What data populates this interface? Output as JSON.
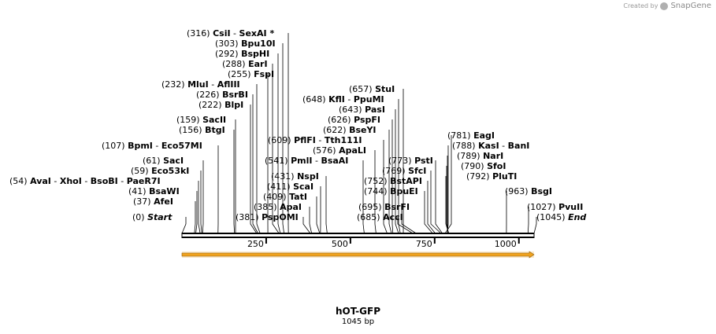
{
  "watermark": {
    "prefix": "Created by",
    "brand": "SnapGene",
    "icon": "snapgene-logo-icon"
  },
  "sequence": {
    "name": "hOT-GFP",
    "length_label": "1045 bp",
    "length": 1045
  },
  "axis": {
    "ticks": [
      250,
      500,
      750,
      1000
    ]
  },
  "feature": {
    "start": 1,
    "end": 1045,
    "color": "#f0a21e",
    "direction": "forward"
  },
  "labels": [
    {
      "pos": "(316)",
      "names": [
        {
          "n": "CsiI",
          "sep": ""
        },
        {
          "n": "SexAI *",
          "sep": "-"
        }
      ],
      "site": 316
    },
    {
      "pos": "(303)",
      "names": [
        {
          "n": "Bpu10I",
          "sep": ""
        }
      ],
      "site": 303
    },
    {
      "pos": "(292)",
      "names": [
        {
          "n": "BspHI",
          "sep": ""
        }
      ],
      "site": 292
    },
    {
      "pos": "(288)",
      "names": [
        {
          "n": "EarI",
          "sep": ""
        }
      ],
      "site": 288
    },
    {
      "pos": "(255)",
      "names": [
        {
          "n": "FspI",
          "sep": ""
        }
      ],
      "site": 255
    },
    {
      "pos": "(232)",
      "names": [
        {
          "n": "MluI",
          "sep": ""
        },
        {
          "n": "AflIII",
          "sep": "-"
        }
      ],
      "site": 232
    },
    {
      "pos": "(226)",
      "names": [
        {
          "n": "BsrBI",
          "sep": ""
        }
      ],
      "site": 226
    },
    {
      "pos": "(222)",
      "names": [
        {
          "n": "BlpI",
          "sep": ""
        }
      ],
      "site": 222
    },
    {
      "pos": "(159)",
      "names": [
        {
          "n": "SacII",
          "sep": ""
        }
      ],
      "site": 159
    },
    {
      "pos": "(156)",
      "names": [
        {
          "n": "BtgI",
          "sep": ""
        }
      ],
      "site": 156
    },
    {
      "pos": "(107)",
      "names": [
        {
          "n": "BpmI",
          "sep": ""
        },
        {
          "n": "Eco57MI",
          "sep": "-"
        }
      ],
      "site": 107
    },
    {
      "pos": "(61)",
      "names": [
        {
          "n": "SacI",
          "sep": ""
        }
      ],
      "site": 61
    },
    {
      "pos": "(59)",
      "names": [
        {
          "n": "Eco53kI",
          "sep": ""
        }
      ],
      "site": 59
    },
    {
      "pos": "(54)",
      "names": [
        {
          "n": "AvaI",
          "sep": ""
        },
        {
          "n": "XhoI",
          "sep": "-"
        },
        {
          "n": "BsoBI",
          "sep": "-"
        },
        {
          "n": "PaeR7I",
          "sep": "-"
        }
      ],
      "site": 54
    },
    {
      "pos": "(41)",
      "names": [
        {
          "n": "BsaWI",
          "sep": ""
        }
      ],
      "site": 41
    },
    {
      "pos": "(37)",
      "names": [
        {
          "n": "AfeI",
          "sep": ""
        }
      ],
      "site": 37
    },
    {
      "pos": "(0)",
      "names": [
        {
          "n": "Start",
          "sep": "",
          "italic": true
        }
      ],
      "site": 0
    },
    {
      "pos": "(657)",
      "names": [
        {
          "n": "StuI",
          "sep": ""
        }
      ],
      "site": 657
    },
    {
      "pos": "(648)",
      "names": [
        {
          "n": "KflI",
          "sep": ""
        },
        {
          "n": "PpuMI",
          "sep": "-"
        }
      ],
      "site": 648
    },
    {
      "pos": "(643)",
      "names": [
        {
          "n": "PasI",
          "sep": ""
        }
      ],
      "site": 643
    },
    {
      "pos": "(626)",
      "names": [
        {
          "n": "PspFI",
          "sep": ""
        }
      ],
      "site": 626
    },
    {
      "pos": "(622)",
      "names": [
        {
          "n": "BseYI",
          "sep": ""
        }
      ],
      "site": 622
    },
    {
      "pos": "(609)",
      "names": [
        {
          "n": "PflFI",
          "sep": ""
        },
        {
          "n": "Tth111I",
          "sep": "-"
        }
      ],
      "site": 609
    },
    {
      "pos": "(576)",
      "names": [
        {
          "n": "ApaLI",
          "sep": ""
        }
      ],
      "site": 576
    },
    {
      "pos": "(541)",
      "names": [
        {
          "n": "PmlI",
          "sep": ""
        },
        {
          "n": "BsaAI",
          "sep": "-"
        }
      ],
      "site": 541
    },
    {
      "pos": "(431)",
      "names": [
        {
          "n": "NspI",
          "sep": ""
        }
      ],
      "site": 431
    },
    {
      "pos": "(411)",
      "names": [
        {
          "n": "ScaI",
          "sep": ""
        }
      ],
      "site": 411
    },
    {
      "pos": "(409)",
      "names": [
        {
          "n": "TatI",
          "sep": ""
        }
      ],
      "site": 409
    },
    {
      "pos": "(385)",
      "names": [
        {
          "n": "ApaI",
          "sep": ""
        }
      ],
      "site": 385
    },
    {
      "pos": "(381)",
      "names": [
        {
          "n": "PspOMI",
          "sep": ""
        }
      ],
      "site": 381
    },
    {
      "pos": "(773)",
      "names": [
        {
          "n": "PstI",
          "sep": ""
        }
      ],
      "site": 773
    },
    {
      "pos": "(769)",
      "names": [
        {
          "n": "SfcI",
          "sep": ""
        }
      ],
      "site": 769
    },
    {
      "pos": "(752)",
      "names": [
        {
          "n": "BstAPI",
          "sep": ""
        }
      ],
      "site": 752
    },
    {
      "pos": "(744)",
      "names": [
        {
          "n": "BpuEI",
          "sep": ""
        }
      ],
      "site": 744
    },
    {
      "pos": "(695)",
      "names": [
        {
          "n": "BsrFI",
          "sep": ""
        }
      ],
      "site": 695
    },
    {
      "pos": "(685)",
      "names": [
        {
          "n": "AccI",
          "sep": ""
        }
      ],
      "site": 685
    },
    {
      "pos": "(781)",
      "names": [
        {
          "n": "EagI",
          "sep": ""
        }
      ],
      "site": 781
    },
    {
      "pos": "(788)",
      "names": [
        {
          "n": "KasI",
          "sep": ""
        },
        {
          "n": "BanI",
          "sep": "-"
        }
      ],
      "site": 788
    },
    {
      "pos": "(789)",
      "names": [
        {
          "n": "NarI",
          "sep": ""
        }
      ],
      "site": 789
    },
    {
      "pos": "(790)",
      "names": [
        {
          "n": "SfoI",
          "sep": ""
        }
      ],
      "site": 790
    },
    {
      "pos": "(792)",
      "names": [
        {
          "n": "PluTI",
          "sep": ""
        }
      ],
      "site": 792
    },
    {
      "pos": "(963)",
      "names": [
        {
          "n": "BsgI",
          "sep": ""
        }
      ],
      "site": 963
    },
    {
      "pos": "(1027)",
      "names": [
        {
          "n": "PvuII",
          "sep": ""
        }
      ],
      "site": 1027
    },
    {
      "pos": "(1045)",
      "names": [
        {
          "n": "End",
          "sep": "",
          "italic": true
        }
      ],
      "site": 1045
    }
  ]
}
